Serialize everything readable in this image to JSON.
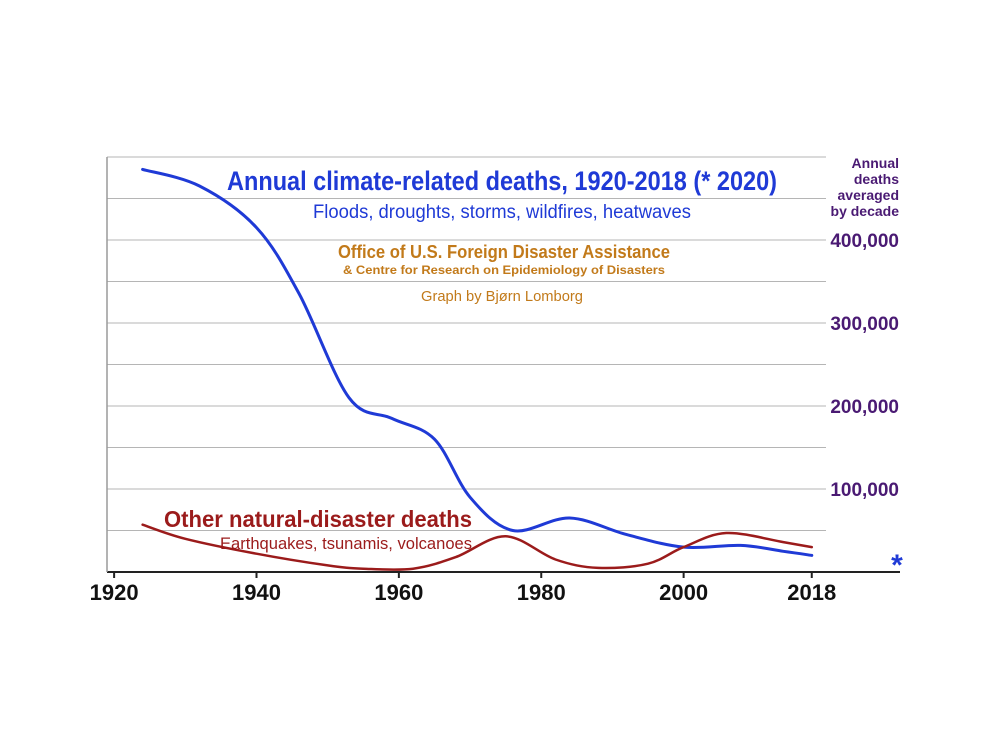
{
  "colors": {
    "climate": "#1f3ad6",
    "other": "#9b1b1b",
    "source": "#c27a1a",
    "axis_right": "#4a1a73",
    "grid": "#b5b5b5",
    "axis": "#222222",
    "asterisk": "#1f3ad6"
  },
  "annotations": {
    "climate_title": "Annual climate-related deaths, 1920-2018  (* 2020)",
    "climate_subtitle": "Floods, droughts, storms, wildfires, heatwaves",
    "source_line1": "Office of U.S. Foreign Disaster Assistance",
    "source_line2": "& Centre for Research on Epidemiology of Disasters",
    "credit": "Graph by Bjørn Lomborg",
    "other_title": "Other natural-disaster deaths",
    "other_subtitle": "Earthquakes, tsunamis, volcanoes",
    "y_label_lines": [
      "Annual",
      "deaths",
      "averaged",
      "by decade"
    ],
    "asterisk": "*"
  },
  "chart_data": {
    "type": "line",
    "title": "Annual climate-related deaths, 1920-2018  (* 2020)",
    "xlabel": "",
    "ylabel": "Annual deaths averaged by decade",
    "xlim": [
      1919,
      2020
    ],
    "ylim": [
      0,
      500000
    ],
    "x_ticks": [
      1920,
      1940,
      1960,
      1980,
      2000,
      2018
    ],
    "x_tick_labels": [
      "1920",
      "1940",
      "1960",
      "1980",
      "2000",
      "2018"
    ],
    "y_ticks": [
      100000,
      200000,
      300000,
      400000
    ],
    "y_tick_labels": [
      "100,000",
      "200,000",
      "300,000",
      "400,000"
    ],
    "y_axis_side": "right",
    "grid": true,
    "series": [
      {
        "name": "Annual climate-related deaths",
        "key": "climate",
        "x": [
          1924,
          1932,
          1940,
          1946,
          1953,
          1959,
          1965,
          1970,
          1976,
          1984,
          1992,
          2000,
          2008,
          2014,
          2018
        ],
        "values": [
          485000,
          465000,
          415000,
          335000,
          210000,
          185000,
          160000,
          90000,
          50000,
          65000,
          45000,
          30000,
          32000,
          25000,
          20000
        ]
      },
      {
        "name": "Other natural-disaster deaths",
        "key": "other",
        "x": [
          1924,
          1930,
          1940,
          1950,
          1955,
          1962,
          1968,
          1975,
          1982,
          1988,
          1995,
          2000,
          2006,
          2014,
          2018
        ],
        "values": [
          57000,
          40000,
          22000,
          8000,
          4000,
          4000,
          18000,
          43000,
          15000,
          5000,
          10000,
          30000,
          47000,
          36000,
          30000
        ]
      }
    ]
  }
}
